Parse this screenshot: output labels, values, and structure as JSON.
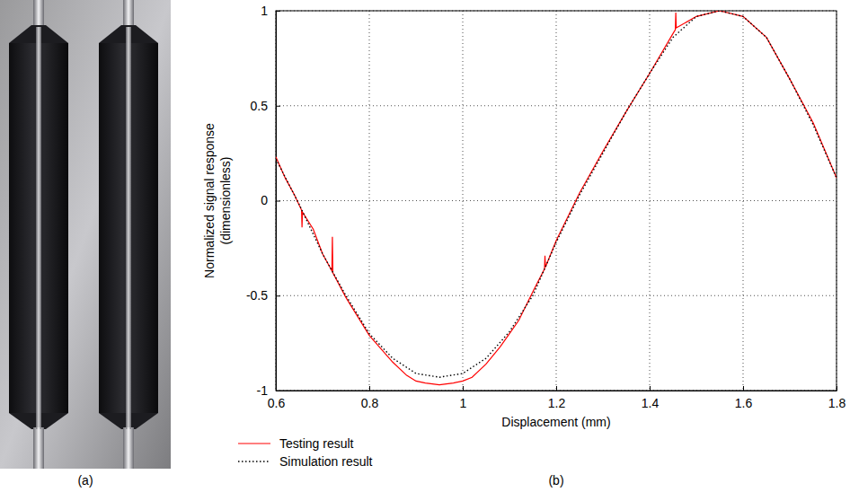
{
  "chart_data": {
    "type": "line",
    "x_label": "Displacement (mm)",
    "y_label": "Normalized signal response (dimensionless)",
    "xlim": [
      0.6,
      1.8
    ],
    "xticks": [
      0.6,
      0.8,
      1,
      1.2,
      1.4,
      1.6,
      1.8
    ],
    "ylim": [
      -1,
      1
    ],
    "yticks": [
      -1,
      -0.5,
      0,
      0.5,
      1
    ],
    "grid": true,
    "legend": "bottom",
    "series": [
      {
        "name": "Testing result",
        "color": "#ff0000",
        "line_style": "solid",
        "x": [
          0.6,
          0.62,
          0.64,
          0.655,
          0.656,
          0.657,
          0.68,
          0.7,
          0.72,
          0.721,
          0.722,
          0.75,
          0.8,
          0.85,
          0.88,
          0.9,
          0.92,
          0.95,
          0.98,
          1.0,
          1.02,
          1.05,
          1.08,
          1.1,
          1.12,
          1.15,
          1.175,
          1.176,
          1.177,
          1.2,
          1.25,
          1.3,
          1.35,
          1.4,
          1.45,
          1.455,
          1.456,
          1.457,
          1.5,
          1.55,
          1.6,
          1.65,
          1.7,
          1.75,
          1.8
        ],
        "values": [
          0.23,
          0.12,
          0.03,
          -0.05,
          -0.14,
          -0.06,
          -0.15,
          -0.28,
          -0.37,
          -0.19,
          -0.38,
          -0.51,
          -0.71,
          -0.85,
          -0.92,
          -0.95,
          -0.96,
          -0.97,
          -0.96,
          -0.95,
          -0.93,
          -0.86,
          -0.77,
          -0.7,
          -0.63,
          -0.48,
          -0.36,
          -0.29,
          -0.35,
          -0.21,
          0.04,
          0.26,
          0.47,
          0.67,
          0.88,
          0.9,
          0.99,
          0.91,
          0.97,
          1.0,
          0.97,
          0.86,
          0.64,
          0.41,
          0.12
        ]
      },
      {
        "name": "Simulation result",
        "color": "#000000",
        "line_style": "dotted",
        "x": [
          0.6,
          0.65,
          0.7,
          0.75,
          0.8,
          0.85,
          0.9,
          0.95,
          1.0,
          1.05,
          1.1,
          1.15,
          1.2,
          1.25,
          1.3,
          1.35,
          1.4,
          1.45,
          1.5,
          1.55,
          1.6,
          1.65,
          1.7,
          1.75,
          1.8
        ],
        "values": [
          0.22,
          -0.02,
          -0.28,
          -0.5,
          -0.7,
          -0.83,
          -0.91,
          -0.93,
          -0.91,
          -0.83,
          -0.69,
          -0.5,
          -0.22,
          0.03,
          0.25,
          0.47,
          0.67,
          0.86,
          0.97,
          1.0,
          0.97,
          0.86,
          0.64,
          0.4,
          0.12
        ]
      }
    ]
  },
  "panel_labels": [
    "(a)",
    "(b)"
  ]
}
